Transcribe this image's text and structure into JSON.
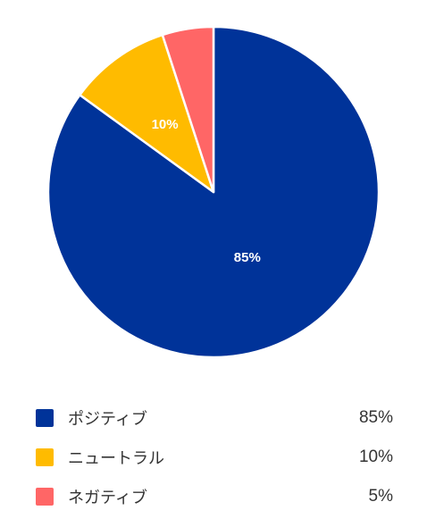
{
  "chart_data": {
    "type": "pie",
    "start": "top, clockwise",
    "slices": [
      {
        "label": "ポジティブ",
        "value": 85,
        "display": "85%",
        "color": "#003399",
        "show_label": true
      },
      {
        "label": "ニュートラル",
        "value": 10,
        "display": "10%",
        "color": "#ffbb00",
        "show_label": true
      },
      {
        "label": "ネガティブ",
        "value": 5,
        "display": "5%",
        "color": "#ff6666",
        "show_label": false
      }
    ]
  },
  "legend": [
    {
      "label": "ポジティブ",
      "value": "85%",
      "color": "#003399"
    },
    {
      "label": "ニュートラル",
      "value": "10%",
      "color": "#ffbb00"
    },
    {
      "label": "ネガティブ",
      "value": "5%",
      "color": "#ff6666"
    }
  ]
}
